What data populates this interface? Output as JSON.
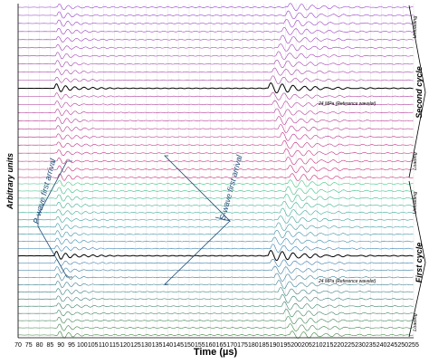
{
  "chart_data": {
    "type": "line",
    "title": "",
    "xlabel": "Time (µs)",
    "ylabel": "Arbitrary units",
    "xlim": [
      70,
      255
    ],
    "x_ticks": [
      70,
      75,
      80,
      85,
      90,
      95,
      100,
      105,
      110,
      115,
      120,
      125,
      130,
      135,
      140,
      145,
      150,
      155,
      160,
      165,
      170,
      175,
      180,
      185,
      190,
      195,
      200,
      205,
      210,
      215,
      220,
      225,
      230,
      235,
      240,
      245,
      250,
      255
    ],
    "grid": true,
    "traces_per_cycle": 22,
    "wave_arrivals_us": {
      "p_first_arrival": 87,
      "s_first_arrival": 187
    },
    "reference_wavelet_label": "24 MPa (Reference wavelet)",
    "cycles": [
      {
        "name": "First cycle",
        "loading_label": "Loading",
        "unloading_label": "Unloading",
        "colors": {
          "loading": "#2f7a2f",
          "peak": "#000000",
          "unloading": "#2ecc71",
          "mid": "#2a6fb0"
        }
      },
      {
        "name": "Second cycle",
        "loading_label": "Loading",
        "unloading_label": "Unloading",
        "colors": {
          "loading": "#c8176a",
          "peak": "#000000",
          "unloading": "#8a2fd0",
          "mid": "#a3309a"
        }
      }
    ]
  },
  "annotations": {
    "p_wave": "P-wave first arrival",
    "s_wave": "S-wave first arrival",
    "reference": "24 MPa (Reference wavelet)"
  }
}
